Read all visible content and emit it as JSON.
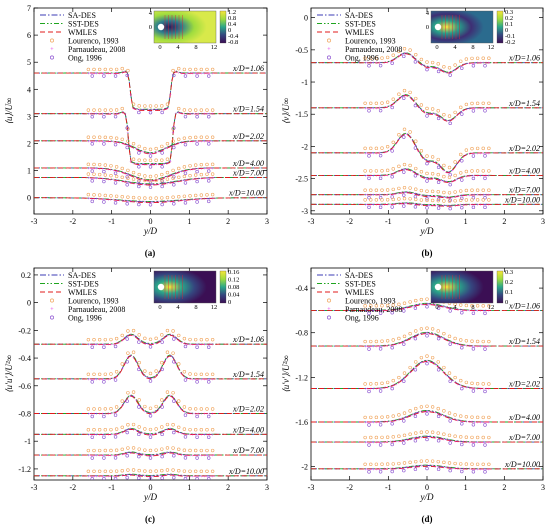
{
  "chart_data": [
    {
      "type": "line",
      "panel": "(a)",
      "xlabel": "y/D",
      "ylabel": "⟨u⟩/U∞",
      "xlim": [
        -3,
        3
      ],
      "ylim": [
        -0.6,
        7
      ],
      "xticks": [
        "-3",
        "-2",
        "-1",
        "0",
        "1",
        "2",
        "3"
      ],
      "yticks": [
        "0",
        "1",
        "2",
        "3",
        "4",
        "5",
        "6",
        "7"
      ],
      "legend": [
        "SA-DES",
        "SST-DES",
        "WMLES",
        "Lourenco, 1993",
        "Parnaudeau, 2008",
        "Ong, 1996"
      ],
      "stations": [
        {
          "label": "x/D=1.06",
          "base": 4.6,
          "dip": -1.35,
          "width": 0.45,
          "flat": true
        },
        {
          "label": "x/D=1.54",
          "base": 3.1,
          "dip": -1.85,
          "width": 0.5,
          "flat": true
        },
        {
          "label": "x/D=2.02",
          "base": 2.1,
          "dip": -0.45,
          "width": 0.55,
          "flat": false
        },
        {
          "label": "x/D=4.00",
          "base": 1.1,
          "dip": -0.45,
          "width": 0.7,
          "flat": false
        },
        {
          "label": "x/D=7.00",
          "base": 0.75,
          "dip": -0.25,
          "width": 0.9,
          "flat": false
        },
        {
          "label": "x/D=10.00",
          "base": 0.0,
          "dip": -0.15,
          "width": 1.1,
          "flat": false
        }
      ],
      "inset": {
        "ticks": [
          "1.2",
          "0.8",
          "0.4",
          "0",
          "-0.4",
          "-0.8"
        ],
        "xticks": [
          "0",
          "4",
          "8",
          "12"
        ],
        "ytick": [
          "4",
          "0"
        ]
      }
    },
    {
      "type": "line",
      "panel": "(b)",
      "xlabel": "y/D",
      "ylabel": "⟨v⟩/U∞",
      "xlim": [
        -3,
        3
      ],
      "ylim": [
        -3.05,
        0.15
      ],
      "xticks": [
        "-3",
        "-2",
        "-1",
        "0",
        "1",
        "2",
        "3"
      ],
      "yticks": [
        "0",
        "-0.5",
        "-1",
        "-1.5",
        "-2",
        "-2.5",
        "-3"
      ],
      "legend": [
        "SA-DES",
        "SST-DES",
        "WMLES",
        "Lourenco, 1993",
        "Parnaudeau, 2008",
        "Ong, 1996"
      ],
      "stations": [
        {
          "label": "x/D=1.06",
          "base": -0.7,
          "amp": 0.15
        },
        {
          "label": "x/D=1.54",
          "base": -1.4,
          "amp": 0.2
        },
        {
          "label": "x/D=2.02",
          "base": -2.1,
          "amp": 0.3
        },
        {
          "label": "x/D=4.00",
          "base": -2.45,
          "amp": 0.1
        },
        {
          "label": "x/D=7.00",
          "base": -2.75,
          "amp": 0.04
        },
        {
          "label": "x/D=10.00",
          "base": -2.9,
          "amp": 0.02
        }
      ],
      "inset": {
        "ticks": [
          "0.3",
          "0.2",
          "0.1",
          "0",
          "-0.1",
          "-0.2"
        ],
        "xticks": [
          "0",
          "4",
          "8",
          "12"
        ],
        "ytick": [
          "4",
          "0"
        ]
      }
    },
    {
      "type": "line",
      "panel": "(c)",
      "xlabel": "y/D",
      "ylabel": "⟨u′u′⟩/U²∞",
      "xlim": [
        -3,
        3
      ],
      "ylim": [
        -1.28,
        0.25
      ],
      "xticks": [
        "-3",
        "-2",
        "-1",
        "0",
        "1",
        "2",
        "3"
      ],
      "yticks": [
        "0.2",
        "0",
        "-0.2",
        "-0.4",
        "-0.6",
        "-0.8",
        "-1",
        "-1.2"
      ],
      "legend": [
        "SA-DES",
        "SST-DES",
        "WMLES",
        "Lourenco, 1993",
        "Parnaudeau, 2008",
        "Ong, 1996"
      ],
      "stations": [
        {
          "label": "x/D=1.06",
          "base": -0.3,
          "amp": 0.07
        },
        {
          "label": "x/D=1.54",
          "base": -0.55,
          "amp": 0.17
        },
        {
          "label": "x/D=2.02",
          "base": -0.8,
          "amp": 0.13
        },
        {
          "label": "x/D=4.00",
          "base": -0.95,
          "amp": 0.04
        },
        {
          "label": "x/D=7.00",
          "base": -1.1,
          "amp": 0.02
        },
        {
          "label": "x/D=10.00",
          "base": -1.25,
          "amp": 0.01
        }
      ],
      "inset": {
        "ticks": [
          "0.16",
          "0.12",
          "0.08",
          "0.04",
          "0"
        ],
        "xticks": [
          "0",
          "4",
          "8",
          "12"
        ],
        "ytick": []
      }
    },
    {
      "type": "line",
      "panel": "(d)",
      "xlabel": "y/D",
      "ylabel": "⟨u′v′⟩/U²∞",
      "xlim": [
        -3,
        3
      ],
      "ylim": [
        -2.12,
        -0.22
      ],
      "xticks": [
        "-3",
        "-2",
        "-1",
        "0",
        "1",
        "2",
        "3"
      ],
      "yticks": [
        "-0.4",
        "-0.8",
        "-1.2",
        "-1.6",
        "-2"
      ],
      "legend": [
        "SA-DES",
        "SST-DES",
        "WMLES",
        "Lourenco, 1993",
        "Parnaudeau, 2008",
        "Ong, 1996"
      ],
      "stations": [
        {
          "label": "x/D=1.06",
          "base": -0.6,
          "amp": 0.06
        },
        {
          "label": "x/D=1.54",
          "base": -0.92,
          "amp": 0.12
        },
        {
          "label": "x/D=2.02",
          "base": -1.3,
          "amp": 0.25
        },
        {
          "label": "x/D=4.00",
          "base": -1.6,
          "amp": 0.1
        },
        {
          "label": "x/D=7.00",
          "base": -1.78,
          "amp": 0.05
        },
        {
          "label": "x/D=10.00",
          "base": -2.02,
          "amp": 0.03
        }
      ],
      "inset": {
        "ticks": [
          "0.3",
          "0.2",
          "0.1",
          "0"
        ],
        "xticks": [
          "0",
          "4",
          "8",
          "12"
        ],
        "ytick": []
      }
    }
  ],
  "colors": {
    "sa": "#3b3bb5",
    "sst": "#1fa51f",
    "wmles": "#e01b1b",
    "lourenco": "#f0a35a",
    "parnaudeau": "#e020e0",
    "ong": "#8a4fd0"
  }
}
